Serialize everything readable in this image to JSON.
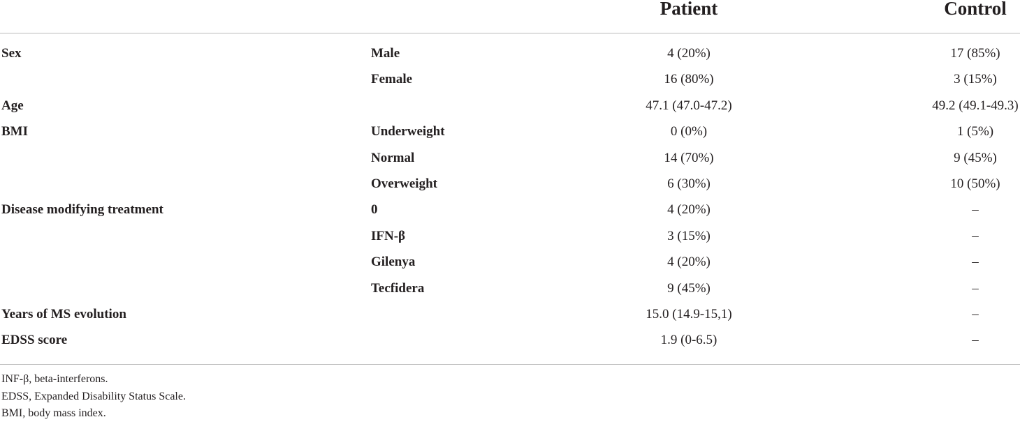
{
  "table": {
    "columns": {
      "patient": "Patient",
      "control": "Control"
    },
    "rows": [
      {
        "label": "Sex",
        "sub": "Male",
        "patient": "4 (20%)",
        "control": "17 (85%)"
      },
      {
        "label": "",
        "sub": "Female",
        "patient": "16 (80%)",
        "control": "3 (15%)"
      },
      {
        "label": "Age",
        "sub": "",
        "patient": "47.1 (47.0-47.2)",
        "control": "49.2 (49.1-49.3)"
      },
      {
        "label": "BMI",
        "sub": "Underweight",
        "patient": "0 (0%)",
        "control": "1 (5%)"
      },
      {
        "label": "",
        "sub": "Normal",
        "patient": "14 (70%)",
        "control": "9 (45%)"
      },
      {
        "label": "",
        "sub": "Overweight",
        "patient": "6 (30%)",
        "control": "10 (50%)"
      },
      {
        "label": "Disease modifying treatment",
        "sub": "0",
        "patient": "4 (20%)",
        "control": "–"
      },
      {
        "label": "",
        "sub": "IFN-β",
        "patient": "3 (15%)",
        "control": "–"
      },
      {
        "label": "",
        "sub": "Gilenya",
        "patient": "4 (20%)",
        "control": "–"
      },
      {
        "label": "",
        "sub": "Tecfidera",
        "patient": "9 (45%)",
        "control": "–"
      },
      {
        "label": "Years of MS evolution",
        "sub": "",
        "patient": "15.0 (14.9-15,1)",
        "control": "–"
      },
      {
        "label": "EDSS score",
        "sub": "",
        "patient": "1.9 (0-6.5)",
        "control": "–"
      }
    ]
  },
  "footnotes": [
    "INF-β, beta-interferons.",
    "EDSS, Expanded Disability Status Scale.",
    "BMI, body mass index."
  ]
}
